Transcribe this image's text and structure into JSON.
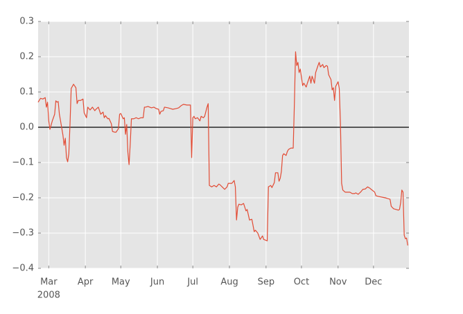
{
  "chart_data": {
    "type": "line",
    "x_year_label": "2008",
    "x": [
      0,
      2,
      4,
      6,
      7,
      8,
      9,
      10,
      12,
      14,
      15,
      16,
      17,
      18,
      19,
      21,
      22,
      23,
      24,
      25,
      26,
      27,
      28,
      30,
      32,
      33,
      34,
      36,
      38,
      39,
      41,
      42,
      44,
      46,
      48,
      49,
      51,
      53,
      55,
      56,
      57,
      59,
      60,
      62,
      63,
      65,
      66,
      68,
      69,
      70,
      72,
      73,
      74,
      75,
      76,
      77,
      78,
      79,
      81,
      83,
      85,
      87,
      89,
      90,
      91,
      93,
      96,
      98,
      100,
      102,
      103,
      104,
      106,
      107,
      110,
      112,
      114,
      117,
      119,
      121,
      123,
      126,
      129,
      130,
      131,
      132,
      133,
      135,
      137,
      138,
      140,
      141,
      143,
      144,
      145,
      147,
      149,
      151,
      153,
      154,
      157,
      158,
      160,
      161,
      164,
      166,
      167,
      168,
      169,
      170,
      172,
      174,
      176,
      177,
      179,
      181,
      183,
      184,
      186,
      188,
      190,
      191,
      194,
      195,
      197,
      198,
      200,
      201,
      203,
      204,
      205,
      206,
      207,
      208,
      210,
      211,
      212,
      214,
      216,
      217,
      218,
      219,
      220,
      221,
      222,
      224,
      225,
      227,
      228,
      230,
      231,
      232,
      234,
      235,
      237,
      238,
      239,
      241,
      242,
      244,
      245,
      246,
      248,
      249,
      250,
      251,
      252,
      254,
      255,
      256,
      257,
      258,
      260,
      262,
      264,
      266,
      268,
      269,
      271,
      273,
      275,
      277,
      279,
      281,
      282,
      285,
      286,
      288,
      291,
      294,
      296,
      298,
      299,
      301,
      303,
      305,
      306,
      307,
      308,
      309,
      310,
      311,
      312,
      313
    ],
    "series": [
      {
        "color": "#e24a33",
        "values": [
          0.071,
          0.082,
          0.08,
          0.084,
          0.057,
          0.071,
          0.018,
          -0.006,
          0.018,
          0.037,
          0.075,
          0.071,
          0.073,
          0.037,
          0.018,
          -0.022,
          -0.051,
          -0.031,
          -0.086,
          -0.098,
          -0.075,
          0.008,
          0.11,
          0.122,
          0.112,
          0.067,
          0.076,
          0.076,
          0.08,
          0.041,
          0.027,
          0.057,
          0.049,
          0.057,
          0.047,
          0.051,
          0.057,
          0.037,
          0.043,
          0.027,
          0.033,
          0.024,
          0.025,
          0.01,
          -0.012,
          -0.014,
          -0.014,
          -0.004,
          0.037,
          0.039,
          0.024,
          0.027,
          -0.02,
          0.008,
          -0.071,
          -0.106,
          -0.047,
          0.024,
          0.024,
          0.027,
          0.024,
          0.027,
          0.027,
          0.057,
          0.057,
          0.059,
          0.055,
          0.057,
          0.053,
          0.051,
          0.037,
          0.045,
          0.047,
          0.057,
          0.055,
          0.053,
          0.051,
          0.053,
          0.055,
          0.061,
          0.065,
          0.063,
          0.063,
          -0.086,
          0.027,
          0.031,
          0.024,
          0.027,
          0.018,
          0.031,
          0.027,
          0.031,
          0.057,
          0.067,
          -0.165,
          -0.169,
          -0.165,
          -0.169,
          -0.161,
          -0.163,
          -0.173,
          -0.176,
          -0.169,
          -0.159,
          -0.159,
          -0.151,
          -0.169,
          -0.263,
          -0.227,
          -0.218,
          -0.22,
          -0.216,
          -0.237,
          -0.233,
          -0.263,
          -0.261,
          -0.296,
          -0.292,
          -0.3,
          -0.318,
          -0.308,
          -0.318,
          -0.322,
          -0.169,
          -0.165,
          -0.171,
          -0.157,
          -0.129,
          -0.129,
          -0.153,
          -0.145,
          -0.125,
          -0.08,
          -0.075,
          -0.08,
          -0.069,
          -0.063,
          -0.059,
          -0.059,
          0.067,
          0.214,
          0.175,
          0.184,
          0.155,
          0.165,
          0.118,
          0.125,
          0.114,
          0.125,
          0.145,
          0.125,
          0.145,
          0.125,
          0.155,
          0.175,
          0.184,
          0.171,
          0.178,
          0.169,
          0.175,
          0.173,
          0.149,
          0.135,
          0.106,
          0.112,
          0.076,
          0.116,
          0.129,
          0.11,
          0.012,
          -0.159,
          -0.178,
          -0.184,
          -0.184,
          -0.184,
          -0.188,
          -0.188,
          -0.186,
          -0.19,
          -0.184,
          -0.176,
          -0.175,
          -0.169,
          -0.173,
          -0.176,
          -0.184,
          -0.194,
          -0.196,
          -0.198,
          -0.2,
          -0.202,
          -0.204,
          -0.224,
          -0.231,
          -0.233,
          -0.235,
          -0.233,
          -0.214,
          -0.178,
          -0.184,
          -0.306,
          -0.316,
          -0.314,
          -0.335
        ]
      }
    ],
    "xlim": [
      0,
      314
    ],
    "xticks": [
      {
        "value": 9,
        "label": "Mar"
      },
      {
        "value": 40,
        "label": "Apr"
      },
      {
        "value": 70,
        "label": "May"
      },
      {
        "value": 101,
        "label": "Jun"
      },
      {
        "value": 131,
        "label": "Jul"
      },
      {
        "value": 162,
        "label": "Aug"
      },
      {
        "value": 193,
        "label": "Sep"
      },
      {
        "value": 223,
        "label": "Oct"
      },
      {
        "value": 254,
        "label": "Nov"
      },
      {
        "value": 284,
        "label": "Dec"
      }
    ],
    "ylim": [
      -0.4,
      0.3
    ],
    "yticks": [
      {
        "value": -0.4,
        "label": "−0.4"
      },
      {
        "value": -0.3,
        "label": "−0.3"
      },
      {
        "value": -0.2,
        "label": "−0.2"
      },
      {
        "value": -0.1,
        "label": "−0.1"
      },
      {
        "value": 0,
        "label": "0.0"
      },
      0.1,
      0.2,
      0.3
    ],
    "hline": {
      "value": 0,
      "color": "#000000"
    },
    "grid": true,
    "background": "#e5e5e5"
  }
}
